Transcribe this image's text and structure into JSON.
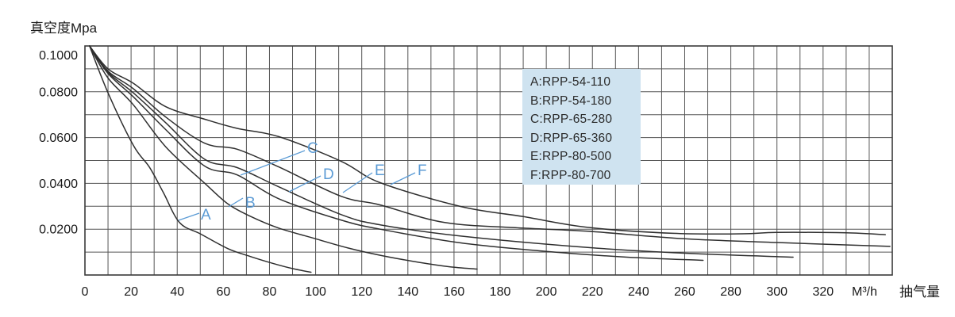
{
  "chart_data": {
    "type": "line",
    "y_axis_title": "真空度Mpa",
    "x_axis_unit": "M³/h",
    "x_axis_title": "抽气量",
    "x_range": [
      0,
      350
    ],
    "y_range": [
      0,
      0.1
    ],
    "grid": {
      "visible": true,
      "x_step": 10,
      "y_step": 0.01
    },
    "x_ticks": [
      0,
      20,
      40,
      60,
      80,
      100,
      120,
      140,
      160,
      180,
      200,
      220,
      240,
      260,
      280,
      300,
      320
    ],
    "y_ticks": [
      {
        "v": 0.1,
        "label": "0.1000"
      },
      {
        "v": 0.08,
        "label": "0.0800"
      },
      {
        "v": 0.06,
        "label": "0.0600"
      },
      {
        "v": 0.04,
        "label": "0.0400"
      },
      {
        "v": 0.02,
        "label": "0.0200"
      }
    ],
    "legend": {
      "position": "top-right",
      "background": "#cfe3f0",
      "entries": [
        "A:RPP-54-110",
        "B:RPP-54-180",
        "C:RPP-65-280",
        "D:RPP-65-360",
        "E:RPP-80-500",
        "F:RPP-80-700"
      ]
    },
    "colors": {
      "curve": "#2f2f2f",
      "grid": "#555555",
      "frame": "#3a3a3a",
      "accent_blue": "#5b9bd5",
      "text": "#1a1a1a",
      "legend_background": "#cfe3f0"
    },
    "series": [
      {
        "name": "A",
        "model": "RPP-54-110",
        "points": [
          [
            2,
            0.1
          ],
          [
            10,
            0.0795
          ],
          [
            21,
            0.0566
          ],
          [
            28,
            0.047
          ],
          [
            34,
            0.036
          ],
          [
            41,
            0.0229
          ],
          [
            50,
            0.018
          ],
          [
            62,
            0.0115
          ],
          [
            72,
            0.008
          ],
          [
            82,
            0.0049
          ],
          [
            90,
            0.0028
          ],
          [
            98,
            0.0012
          ]
        ]
      },
      {
        "name": "B",
        "model": "RPP-54-180",
        "points": [
          [
            2,
            0.1
          ],
          [
            10,
            0.086
          ],
          [
            21,
            0.0743
          ],
          [
            35,
            0.056
          ],
          [
            52,
            0.04
          ],
          [
            62,
            0.031
          ],
          [
            72,
            0.0255
          ],
          [
            84,
            0.0205
          ],
          [
            100,
            0.0158
          ],
          [
            114,
            0.0118
          ],
          [
            128,
            0.0086
          ],
          [
            145,
            0.0055
          ],
          [
            158,
            0.0036
          ],
          [
            170,
            0.0026
          ]
        ]
      },
      {
        "name": "C",
        "model": "RPP-65-280",
        "points": [
          [
            2,
            0.1
          ],
          [
            10,
            0.088
          ],
          [
            21,
            0.0778
          ],
          [
            35,
            0.0635
          ],
          [
            52,
            0.0475
          ],
          [
            66,
            0.0437
          ],
          [
            84,
            0.0333
          ],
          [
            111,
            0.024
          ],
          [
            128,
            0.02
          ],
          [
            163,
            0.014
          ],
          [
            200,
            0.0103
          ],
          [
            235,
            0.0078
          ],
          [
            268,
            0.0064
          ]
        ]
      },
      {
        "name": "D",
        "model": "RPP-65-360",
        "points": [
          [
            2,
            0.1
          ],
          [
            10,
            0.0885
          ],
          [
            21,
            0.0795
          ],
          [
            35,
            0.0665
          ],
          [
            52,
            0.0505
          ],
          [
            66,
            0.0469
          ],
          [
            84,
            0.0385
          ],
          [
            111,
            0.0264
          ],
          [
            128,
            0.0219
          ],
          [
            163,
            0.017
          ],
          [
            218,
            0.012
          ],
          [
            260,
            0.0095
          ],
          [
            307,
            0.0078
          ]
        ]
      },
      {
        "name": "E",
        "model": "RPP-80-500",
        "points": [
          [
            2,
            0.1
          ],
          [
            10,
            0.089
          ],
          [
            21,
            0.0813
          ],
          [
            35,
            0.069
          ],
          [
            52,
            0.0575
          ],
          [
            66,
            0.0549
          ],
          [
            84,
            0.0472
          ],
          [
            111,
            0.0344
          ],
          [
            128,
            0.0306
          ],
          [
            156,
            0.0229
          ],
          [
            190,
            0.0205
          ],
          [
            218,
            0.0191
          ],
          [
            260,
            0.0158
          ],
          [
            300,
            0.0142
          ],
          [
            349,
            0.0125
          ]
        ]
      },
      {
        "name": "F",
        "model": "RPP-80-700",
        "points": [
          [
            2,
            0.1
          ],
          [
            10,
            0.09
          ],
          [
            21,
            0.0837
          ],
          [
            35,
            0.0735
          ],
          [
            52,
            0.068
          ],
          [
            66,
            0.064
          ],
          [
            84,
            0.0604
          ],
          [
            111,
            0.0497
          ],
          [
            128,
            0.0403
          ],
          [
            163,
            0.0299
          ],
          [
            190,
            0.0255
          ],
          [
            218,
            0.0208
          ],
          [
            255,
            0.0182
          ],
          [
            285,
            0.018
          ],
          [
            300,
            0.0186
          ],
          [
            330,
            0.0184
          ],
          [
            347,
            0.0176
          ]
        ]
      }
    ]
  }
}
